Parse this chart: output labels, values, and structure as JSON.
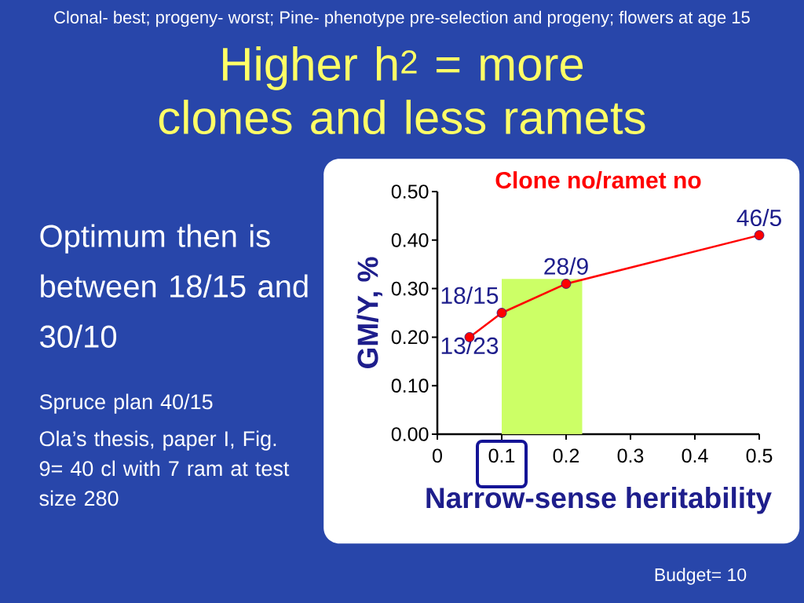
{
  "chart_data": {
    "type": "line",
    "title": "Clone no/ramet no",
    "subtitle": "Clonal- best; progeny- worst; Pine- phenotype pre-selection and progeny; flowers at age 15",
    "annotations": [
      "Higher h$^{2}$ = more clones and less ramets",
      "Optimum then is between 18/15 and 30/10",
      "Spruce plan 40/15",
      "Ola’s thesis,  paper I, Fig. 9= 40 cl with 7 ram at test size 280",
      "Budget= 10"
    ],
    "xlabel": "Narrow-sense heritability",
    "ylabel": "GM/Y, %",
    "x": [
      0.05,
      0.1,
      0.2,
      0.5
    ],
    "series": [
      {
        "color": "#ff0000",
        "values": [
          0.2,
          0.25,
          0.31,
          0.41
        ],
        "value_labels": [
          "13/23",
          "18/15",
          "28/9",
          "46/5"
        ]
      }
    ],
    "xlim": [
      0,
      0.5
    ],
    "ylim": [
      0,
      0.5
    ],
    "xticks": [
      0,
      0.1,
      0.2,
      0.3,
      0.4,
      0.5
    ],
    "yticks": [
      {
        "value": 0,
        "label": "0.00"
      },
      {
        "value": 0.1,
        "label": "0.10"
      },
      {
        "value": 0.2,
        "label": "0.20"
      },
      {
        "value": 0.3,
        "label": "0.30"
      },
      {
        "value": 0.4,
        "label": "0.40"
      },
      {
        "value": 0.5,
        "label": "0.50"
      }
    ],
    "bands": [
      {
        "axis": "x",
        "from": 0.1,
        "to": 0.225,
        "color": "#ccff66"
      }
    ],
    "marker": "circle",
    "grid": false
  }
}
